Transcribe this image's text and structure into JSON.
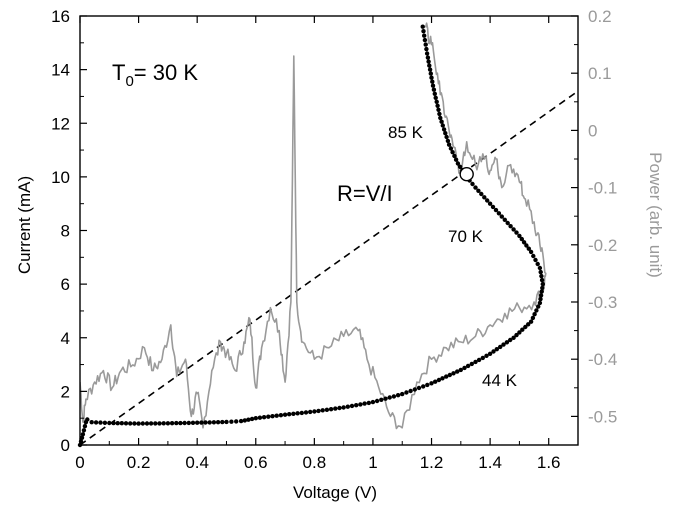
{
  "chart_data": {
    "type": "scatter",
    "xlabel": "Voltage (V)",
    "ylabel": "Current (mA)",
    "y2label": "Power (arb. unit)",
    "xlim": [
      0,
      1.7
    ],
    "ylim": [
      0,
      16
    ],
    "y2lim": [
      -0.55,
      0.2
    ],
    "x_ticks": [
      "0",
      "0.2",
      "0.4",
      "0.6",
      "0.8",
      "1",
      "1.2",
      "1.4",
      "1.6"
    ],
    "y_ticks": [
      "0",
      "2",
      "4",
      "6",
      "8",
      "10",
      "12",
      "14",
      "16"
    ],
    "y2_ticks": [
      "0.2",
      "0.1",
      "0",
      "-0.1",
      "-0.2",
      "-0.3",
      "-0.4",
      "-0.5"
    ],
    "grid": false,
    "iv_curve": {
      "points": [
        [
          0.0,
          0.0
        ],
        [
          0.01,
          0.4
        ],
        [
          0.02,
          0.85
        ],
        [
          0.025,
          0.95
        ],
        [
          0.04,
          0.85
        ],
        [
          0.1,
          0.82
        ],
        [
          0.2,
          0.8
        ],
        [
          0.3,
          0.81
        ],
        [
          0.4,
          0.83
        ],
        [
          0.5,
          0.86
        ],
        [
          0.55,
          0.89
        ],
        [
          0.6,
          1.0
        ],
        [
          0.7,
          1.13
        ],
        [
          0.8,
          1.25
        ],
        [
          0.9,
          1.4
        ],
        [
          1.0,
          1.6
        ],
        [
          1.1,
          1.9
        ],
        [
          1.2,
          2.3
        ],
        [
          1.3,
          2.8
        ],
        [
          1.4,
          3.4
        ],
        [
          1.48,
          4.0
        ],
        [
          1.54,
          4.6
        ],
        [
          1.57,
          5.3
        ],
        [
          1.58,
          6.0
        ],
        [
          1.57,
          6.6
        ],
        [
          1.54,
          7.2
        ],
        [
          1.5,
          7.8
        ],
        [
          1.45,
          8.4
        ],
        [
          1.4,
          9.0
        ],
        [
          1.35,
          9.6
        ],
        [
          1.32,
          10.0
        ],
        [
          1.29,
          10.5
        ],
        [
          1.26,
          11.2
        ],
        [
          1.23,
          12.2
        ],
        [
          1.205,
          13.4
        ],
        [
          1.185,
          14.6
        ],
        [
          1.17,
          15.6
        ]
      ]
    },
    "power_trace": {
      "points": [
        [
          0.0,
          -0.44
        ],
        [
          0.01,
          -0.51
        ],
        [
          0.02,
          -0.47
        ],
        [
          0.05,
          -0.44
        ],
        [
          0.08,
          -0.42
        ],
        [
          0.11,
          -0.45
        ],
        [
          0.14,
          -0.42
        ],
        [
          0.18,
          -0.41
        ],
        [
          0.22,
          -0.38
        ],
        [
          0.25,
          -0.42
        ],
        [
          0.28,
          -0.4
        ],
        [
          0.31,
          -0.34
        ],
        [
          0.33,
          -0.43
        ],
        [
          0.36,
          -0.4
        ],
        [
          0.38,
          -0.5
        ],
        [
          0.4,
          -0.46
        ],
        [
          0.42,
          -0.52
        ],
        [
          0.45,
          -0.42
        ],
        [
          0.48,
          -0.37
        ],
        [
          0.5,
          -0.39
        ],
        [
          0.53,
          -0.42
        ],
        [
          0.56,
          -0.37
        ],
        [
          0.58,
          -0.33
        ],
        [
          0.6,
          -0.45
        ],
        [
          0.62,
          -0.38
        ],
        [
          0.65,
          -0.31
        ],
        [
          0.68,
          -0.35
        ],
        [
          0.7,
          -0.44
        ],
        [
          0.72,
          -0.3
        ],
        [
          0.73,
          0.13
        ],
        [
          0.74,
          -0.3
        ],
        [
          0.76,
          -0.37
        ],
        [
          0.8,
          -0.4
        ],
        [
          0.85,
          -0.38
        ],
        [
          0.9,
          -0.36
        ],
        [
          0.95,
          -0.35
        ],
        [
          0.98,
          -0.4
        ],
        [
          1.02,
          -0.45
        ],
        [
          1.06,
          -0.5
        ],
        [
          1.1,
          -0.52
        ],
        [
          1.15,
          -0.44
        ],
        [
          1.2,
          -0.4
        ],
        [
          1.25,
          -0.38
        ],
        [
          1.3,
          -0.37
        ],
        [
          1.35,
          -0.36
        ],
        [
          1.4,
          -0.34
        ],
        [
          1.45,
          -0.32
        ],
        [
          1.5,
          -0.31
        ],
        [
          1.55,
          -0.3
        ],
        [
          1.58,
          -0.28
        ],
        [
          1.59,
          -0.25
        ],
        [
          1.57,
          -0.2
        ],
        [
          1.55,
          -0.16
        ],
        [
          1.52,
          -0.12
        ],
        [
          1.5,
          -0.09
        ],
        [
          1.47,
          -0.06
        ],
        [
          1.44,
          -0.1
        ],
        [
          1.42,
          -0.05
        ],
        [
          1.4,
          -0.07
        ],
        [
          1.38,
          -0.05
        ],
        [
          1.35,
          -0.06
        ],
        [
          1.32,
          -0.02
        ],
        [
          1.3,
          -0.08
        ],
        [
          1.28,
          -0.03
        ],
        [
          1.26,
          0.0
        ],
        [
          1.24,
          0.05
        ],
        [
          1.22,
          0.1
        ],
        [
          1.2,
          0.15
        ],
        [
          1.18,
          0.18
        ]
      ]
    },
    "resistance_line": {
      "label": "R=V/I",
      "points": [
        [
          0.0,
          0.0
        ],
        [
          1.7,
          13.2
        ]
      ]
    },
    "annotations": {
      "t0": {
        "prefix": "T",
        "subscript": "0",
        "suffix": "= 30 K"
      },
      "t85": "85 K",
      "t70": "70 K",
      "t44": "44 K"
    },
    "intersection_point": [
      1.32,
      10.1
    ]
  }
}
